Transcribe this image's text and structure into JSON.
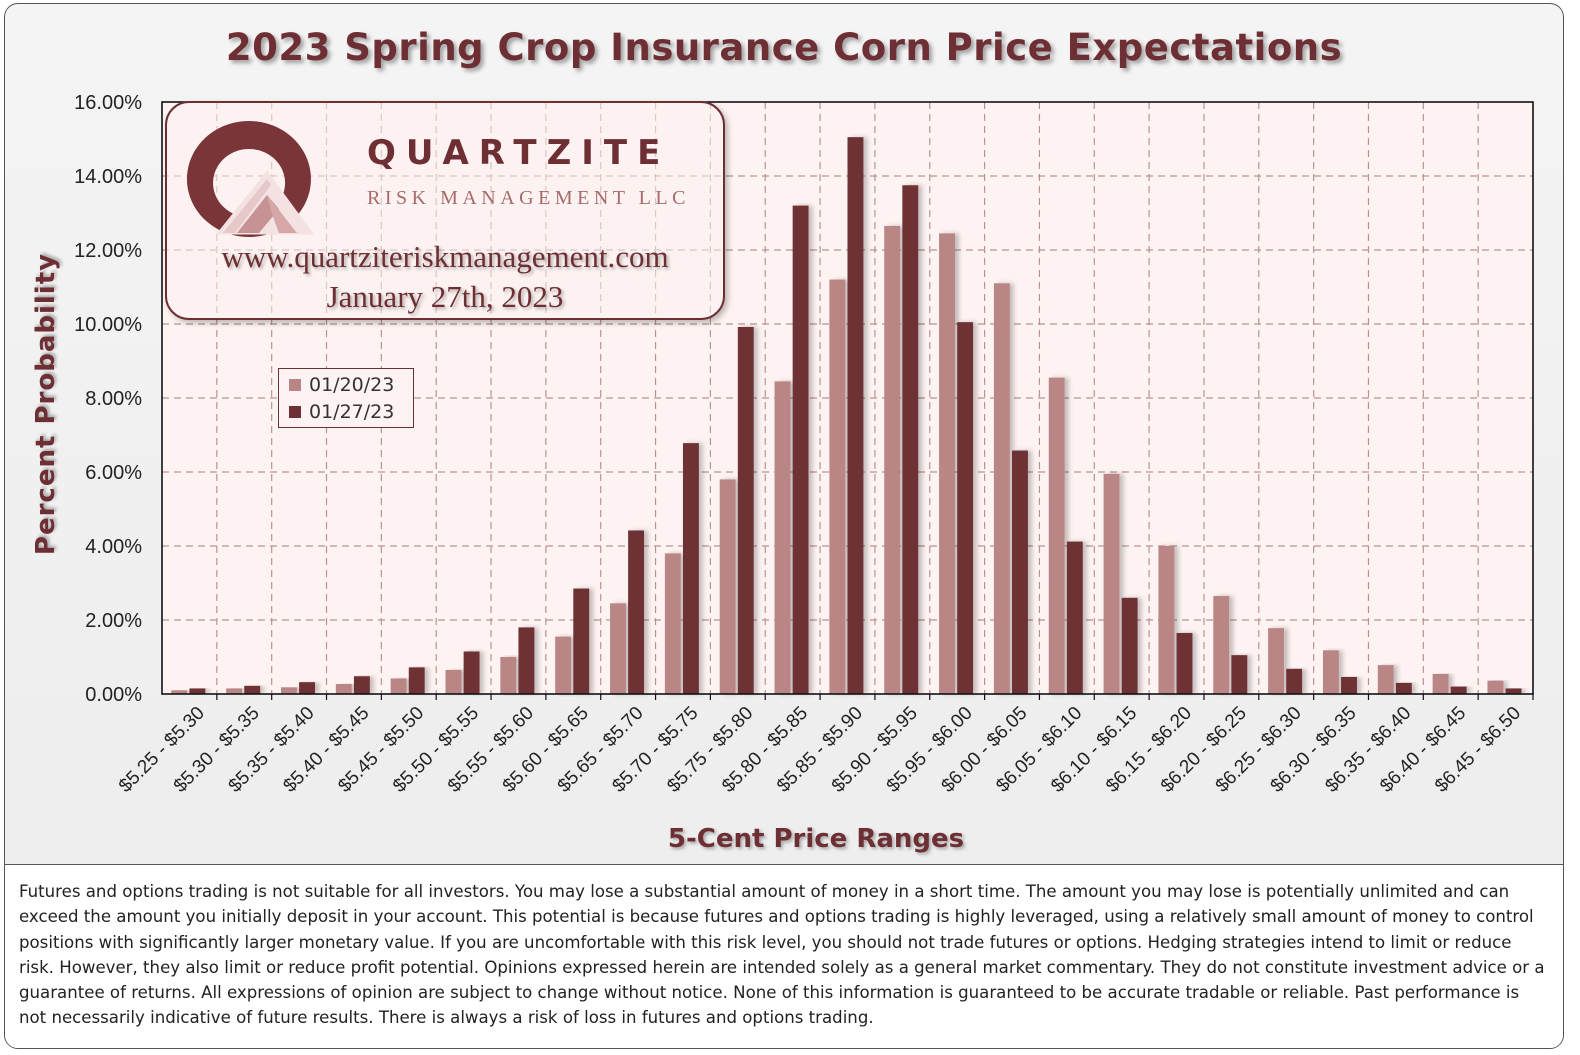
{
  "chart_data": {
    "type": "bar",
    "title": "2023 Spring Crop Insurance Corn Price Expectations",
    "xlabel": "5-Cent Price Ranges",
    "ylabel": "Percent  Probability",
    "ylim": [
      0,
      16
    ],
    "y_ticks": [
      "0.00%",
      "2.00%",
      "4.00%",
      "6.00%",
      "8.00%",
      "10.00%",
      "12.00%",
      "14.00%",
      "16.00%"
    ],
    "grid": true,
    "legend_position": "left",
    "categories": [
      "$5.25 - $5.30",
      "$5.30 - $5.35",
      "$5.35 - $5.40",
      "$5.40 - $5.45",
      "$5.45 - $5.50",
      "$5.50 - $5.55",
      "$5.55 - $5.60",
      "$5.60 - $5.65",
      "$5.65 - $5.70",
      "$5.70 - $5.75",
      "$5.75 - $5.80",
      "$5.80 - $5.85",
      "$5.85 - $5.90",
      "$5.90 - $5.95",
      "$5.95 - $6.00",
      "$6.00 - $6.05",
      "$6.05 - $6.10",
      "$6.10 - $6.15",
      "$6.15 - $6.20",
      "$6.20 - $6.25",
      "$6.25 - $6.30",
      "$6.30 - $6.35",
      "$6.35 - $6.40",
      "$6.40 - $6.45",
      "$6.45 - $6.50"
    ],
    "series": [
      {
        "name": "01/20/23",
        "color": "#b98585",
        "values": [
          0.1,
          0.15,
          0.18,
          0.27,
          0.42,
          0.65,
          1.0,
          1.55,
          2.45,
          3.8,
          5.8,
          8.45,
          11.2,
          12.65,
          12.45,
          11.1,
          8.55,
          5.95,
          4.0,
          2.65,
          1.78,
          1.18,
          0.78,
          0.54,
          0.36
        ]
      },
      {
        "name": "01/27/23",
        "color": "#6e3035",
        "values": [
          0.15,
          0.22,
          0.32,
          0.48,
          0.72,
          1.15,
          1.8,
          2.85,
          4.42,
          6.78,
          9.92,
          13.2,
          15.05,
          13.75,
          10.05,
          6.58,
          4.12,
          2.6,
          1.65,
          1.05,
          0.68,
          0.46,
          0.3,
          0.2,
          0.15
        ]
      }
    ],
    "colors": {
      "title": "#6e2f34",
      "plot_background": "#fdf3f2",
      "grid": "#b99393"
    }
  },
  "logo": {
    "brand": "QUARTZITE",
    "subtitle": "RISK MANAGEMENT LLC",
    "website": "www.quartziteriskmanagement.com",
    "date": "January 27th, 2023",
    "icon": "quartzite-logo-icon"
  },
  "disclaimer": "Futures and options trading is not suitable for all investors. You may lose a substantial amount of money in a short time. The amount you may lose is potentially unlimited and can exceed the amount you initially deposit in your account. This potential is because futures and options trading is highly leveraged, using a relatively small amount of money to control positions with significantly larger monetary value. If you are uncomfortable with this risk level, you should not trade futures or options. Hedging strategies intend to limit or reduce risk. However, they also limit or reduce profit potential. Opinions expressed herein are intended solely as a general market commentary. They do not constitute investment advice or a guarantee of returns. All expressions of opinion are subject to change without notice. None of this information is guaranteed to be accurate tradable or reliable. Past performance is not necessarily indicative of future results. There is always a risk of loss in futures and options trading."
}
